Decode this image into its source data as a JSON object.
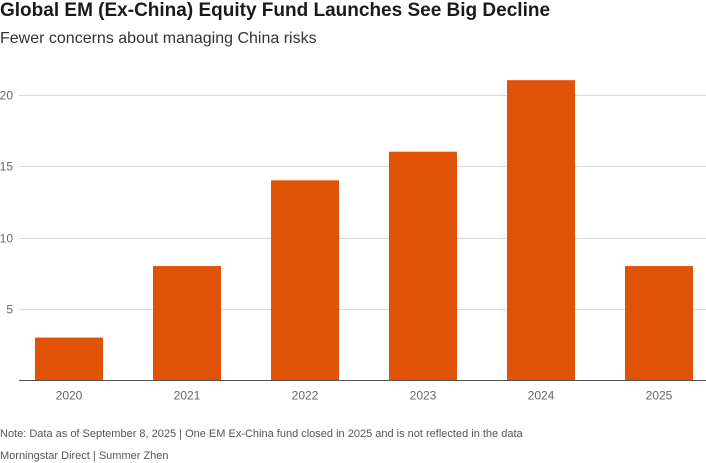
{
  "chart_data": {
    "type": "bar",
    "title": "Global EM (Ex-China) Equity Fund Launches See Big Decline",
    "subtitle": "Fewer concerns about managing China risks",
    "categories": [
      "2020",
      "2021",
      "2022",
      "2023",
      "2024",
      "2025"
    ],
    "values": [
      3,
      8,
      14,
      16,
      21,
      8
    ],
    "ylim": [
      0,
      22
    ],
    "yticks": [
      5,
      10,
      15,
      20
    ],
    "ytick_labels": [
      "5",
      "10",
      "15",
      "20"
    ],
    "xlabel": "",
    "ylabel": "",
    "grid": true,
    "bar_color": "#e05206"
  },
  "footer": {
    "note": "Note: Data as of September 8, 2025 | One EM Ex-China fund closed in 2025 and is not reflected in the data",
    "source": "Morningstar Direct | Summer Zhen"
  }
}
